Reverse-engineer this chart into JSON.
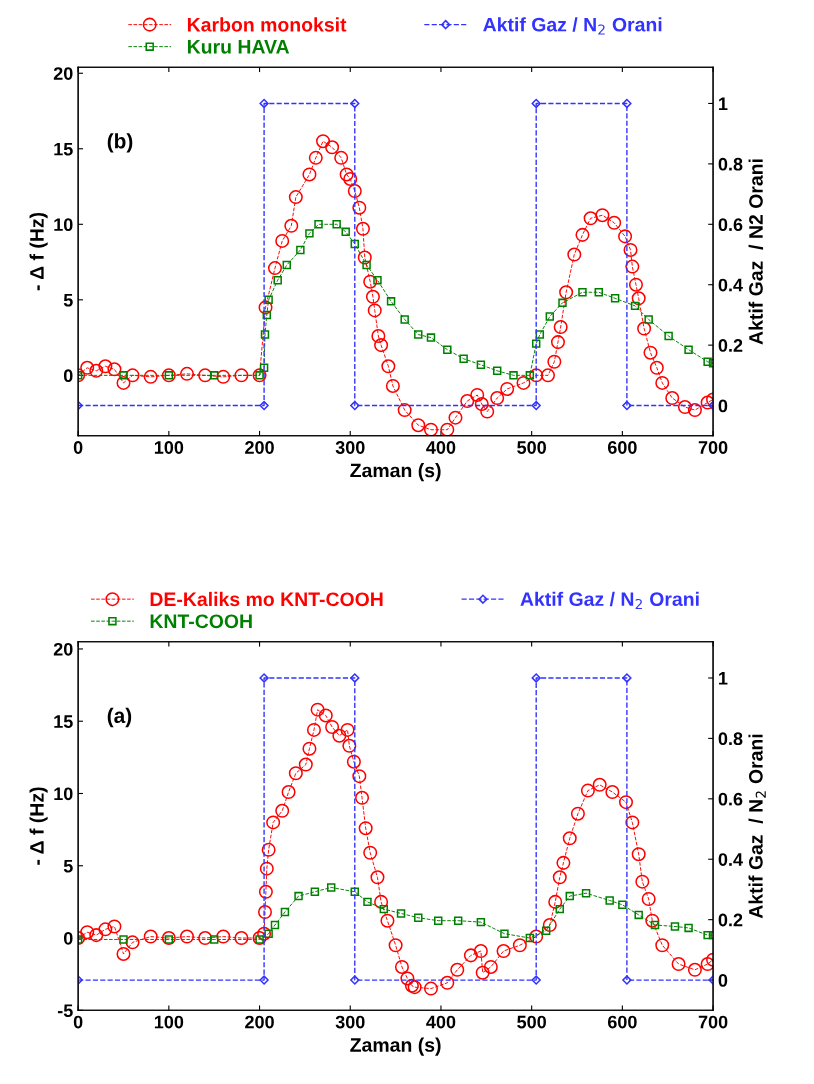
{
  "chart_data": [
    {
      "type": "line",
      "xlabel": "Zaman (s)",
      "ylabel": "- Δ f (Hz)",
      "y2label": "Aktif Gaz  / N2 Orani",
      "annotations": [
        "(b)"
      ],
      "legend": "top",
      "grid": false,
      "xlim": [
        0,
        700
      ],
      "xticks": [
        0,
        100,
        200,
        300,
        400,
        500,
        600,
        700
      ],
      "ylim": [
        -4,
        20.4
      ],
      "yticks": [
        0,
        5,
        10,
        15,
        20
      ],
      "y2lim": [
        -0.1,
        1.12
      ],
      "y2ticks": [
        0,
        0.2,
        0.4,
        0.6,
        0.8,
        1
      ],
      "series": [
        {
          "name": "Karbon monoksit",
          "color": "#ff0000",
          "marker": "circle",
          "line_style": "dashed",
          "x": [
            0,
            10,
            20,
            30,
            40,
            50,
            60,
            80,
            100,
            120,
            140,
            160,
            180,
            200,
            206.6,
            217,
            225,
            235,
            240,
            255,
            262,
            270,
            280,
            290,
            296,
            300,
            305,
            310,
            314,
            316,
            322,
            325,
            327,
            331,
            334,
            342,
            347,
            360,
            375,
            389,
            407,
            416,
            429,
            440,
            445,
            451,
            462,
            473,
            491,
            505,
            518,
            525,
            529,
            532,
            538,
            547,
            556,
            565,
            578,
            591,
            603,
            609,
            611,
            615,
            618,
            624,
            631,
            638,
            644,
            655,
            669,
            680,
            694,
            700
          ],
          "values": [
            0,
            0.5,
            0.3,
            0.6,
            0.4,
            -0.5,
            0,
            -0.1,
            0,
            0.1,
            0,
            -0.1,
            0,
            0,
            4.5,
            7.1,
            8.9,
            9.9,
            11.8,
            13.3,
            14.4,
            15.5,
            15.1,
            14.4,
            13.3,
            13.0,
            12.2,
            11.1,
            9.7,
            7.8,
            6.2,
            5.2,
            4.3,
            2.6,
            2.0,
            0.6,
            -0.7,
            -2.3,
            -3.3,
            -3.6,
            -3.6,
            -2.8,
            -1.7,
            -1.3,
            -1.9,
            -2.4,
            -1.5,
            -0.9,
            -0.5,
            0.0,
            0.0,
            0.9,
            2.2,
            3.2,
            5.5,
            8.0,
            9.3,
            10.4,
            10.6,
            10.1,
            9.2,
            8.3,
            7.2,
            6.0,
            5.1,
            3.1,
            1.5,
            0.5,
            -0.5,
            -1.5,
            -2.1,
            -2.3,
            -1.8,
            -1.6
          ]
        },
        {
          "name": "Kuru HAVA",
          "color": "#008000",
          "marker": "square",
          "line_style": "dashed",
          "x": [
            0,
            50,
            100,
            150,
            200,
            205,
            206,
            208,
            210,
            220,
            230,
            245,
            255,
            265,
            285,
            295,
            305,
            318,
            330,
            345,
            360,
            375,
            389,
            407,
            425,
            444,
            462,
            480,
            498,
            505,
            509,
            520,
            534,
            556,
            574,
            592,
            614,
            629,
            651,
            673,
            694,
            700
          ],
          "values": [
            0,
            0,
            0,
            0,
            0,
            0.5,
            2.7,
            4.0,
            5.0,
            6.3,
            7.3,
            8.3,
            9.4,
            10.0,
            10.0,
            9.5,
            8.7,
            7.3,
            6.3,
            4.9,
            3.7,
            2.7,
            2.5,
            1.7,
            1.1,
            0.7,
            0.3,
            0.0,
            0.0,
            2.1,
            2.7,
            3.9,
            4.8,
            5.5,
            5.5,
            5.1,
            4.6,
            3.7,
            2.6,
            1.7,
            0.9,
            0.8
          ]
        },
        {
          "name": "Aktif Gaz / N$_{2}$ Orani",
          "color": "#3333ff",
          "marker": "diamond",
          "line_style": "dashed",
          "axis": "y2",
          "x": [
            0,
            205,
            205,
            305,
            305,
            505,
            505,
            605,
            605,
            700
          ],
          "values": [
            0,
            0,
            1,
            1,
            0,
            0,
            1,
            1,
            0,
            0
          ]
        }
      ]
    },
    {
      "type": "line",
      "xlabel": "Zaman (s)",
      "ylabel": "- Δ f (Hz)",
      "y2label": "Aktif Gaz  / N$_{2}$ Orani",
      "annotations": [
        "(a)"
      ],
      "legend": "top",
      "grid": false,
      "xlim": [
        0,
        700
      ],
      "xticks": [
        0,
        100,
        200,
        300,
        400,
        500,
        600,
        700
      ],
      "ylim": [
        -5,
        20.5
      ],
      "yticks": [
        -5,
        0,
        5,
        10,
        15,
        20
      ],
      "y2lim": [
        -0.1,
        1.12
      ],
      "y2ticks": [
        0,
        0.2,
        0.4,
        0.6,
        0.8,
        1
      ],
      "series": [
        {
          "name": "DE-Kaliks mo KNT-COOH",
          "color": "#ff0000",
          "marker": "circle",
          "line_style": "dashed",
          "x": [
            0,
            10,
            20,
            30,
            40,
            50,
            60,
            80,
            100,
            120,
            140,
            160,
            180,
            200,
            205,
            206,
            207,
            208,
            210,
            215,
            225,
            232,
            240,
            251,
            255,
            260,
            264,
            273,
            280,
            288,
            297,
            299,
            304,
            310,
            313,
            317,
            322,
            330,
            334,
            341,
            350,
            357,
            363,
            368,
            371,
            389,
            407,
            418,
            433,
            444,
            446,
            455,
            469,
            487,
            505,
            520,
            526,
            531,
            535,
            542,
            551,
            562,
            575,
            589,
            604,
            611,
            618,
            622,
            629,
            633,
            644,
            662,
            680,
            694,
            700
          ],
          "values": [
            0,
            0.4,
            0.2,
            0.6,
            0.8,
            -1.1,
            -0.3,
            0.1,
            0,
            0.1,
            0,
            0.1,
            0,
            0,
            0.3,
            1.8,
            3.2,
            4.8,
            6.1,
            8.0,
            8.8,
            10.1,
            11.4,
            12.0,
            13.1,
            14.4,
            15.8,
            15.4,
            14.6,
            14.0,
            14.4,
            13.3,
            12.2,
            11.2,
            9.7,
            7.6,
            5.9,
            4.2,
            2.5,
            1.2,
            -0.5,
            -2.0,
            -2.8,
            -3.3,
            -3.4,
            -3.5,
            -3.1,
            -2.2,
            -1.2,
            -0.9,
            -2.4,
            -2.0,
            -0.9,
            -0.5,
            0.1,
            0.9,
            2.5,
            4.2,
            5.2,
            6.9,
            8.6,
            10.2,
            10.6,
            10.1,
            9.4,
            8.0,
            5.8,
            3.9,
            2.7,
            1.2,
            -0.5,
            -1.8,
            -2.2,
            -1.8,
            -1.5
          ]
        },
        {
          "name": "KNT-COOH",
          "color": "#008000",
          "marker": "square",
          "line_style": "dashed",
          "x": [
            0,
            50,
            100,
            150,
            200,
            210,
            217,
            228,
            243,
            261,
            279,
            305,
            319,
            337,
            356,
            375,
            397,
            419,
            444,
            470,
            498,
            516,
            531,
            542,
            560,
            586,
            600,
            618,
            636,
            658,
            673,
            694,
            700
          ],
          "values": [
            -0.1,
            -0.1,
            -0.1,
            -0.1,
            -0.1,
            0.3,
            0.9,
            1.8,
            2.9,
            3.2,
            3.5,
            3.2,
            2.5,
            2.0,
            1.7,
            1.4,
            1.2,
            1.2,
            1.1,
            0.3,
            0.0,
            0.5,
            2.0,
            2.9,
            3.1,
            2.6,
            2.3,
            1.6,
            0.9,
            0.8,
            0.7,
            0.2,
            0.2
          ]
        },
        {
          "name": "Aktif Gaz / N$_{2}$ Orani",
          "color": "#3333ff",
          "marker": "diamond",
          "line_style": "dashed",
          "axis": "y2",
          "x": [
            0,
            205,
            205,
            305,
            305,
            505,
            505,
            605,
            605,
            700
          ],
          "values": [
            0,
            0,
            1,
            1,
            0,
            0,
            1,
            1,
            0,
            0
          ]
        }
      ]
    }
  ]
}
